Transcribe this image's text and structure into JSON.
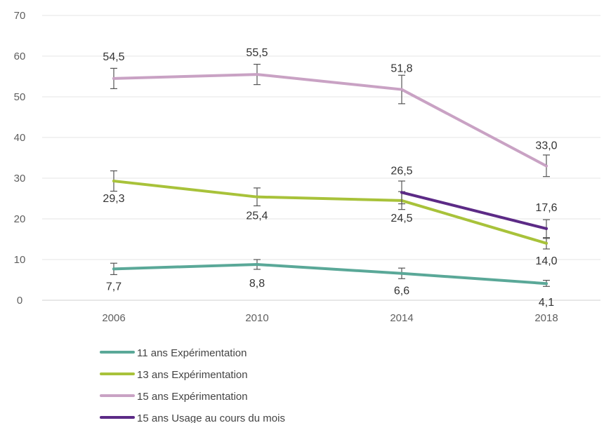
{
  "chart_data": {
    "type": "line",
    "title": "",
    "xlabel": "",
    "ylabel": "",
    "ylim": [
      0,
      70
    ],
    "yticks": [
      0,
      10,
      20,
      30,
      40,
      50,
      60,
      70
    ],
    "grid": true,
    "legend_position": "bottom-left",
    "categories": [
      "2006",
      "2010",
      "2014",
      "2018"
    ],
    "series": [
      {
        "name": "11 ans Expérimentation",
        "color": "#5aa898",
        "values": [
          7.7,
          8.8,
          6.6,
          4.1
        ],
        "labels": [
          "7,7",
          "8,8",
          "6,6",
          "4,1"
        ],
        "error": [
          [
            6.3,
            9.1
          ],
          [
            7.6,
            10.0
          ],
          [
            5.3,
            7.9
          ],
          [
            3.4,
            4.9
          ]
        ]
      },
      {
        "name": "13 ans Expérimentation",
        "color": "#a8c23a",
        "values": [
          29.3,
          25.4,
          24.5,
          14.0
        ],
        "labels": [
          "29,3",
          "25,4",
          "24,5",
          "14,0"
        ],
        "error": [
          [
            26.8,
            31.8
          ],
          [
            23.2,
            27.6
          ],
          [
            22.3,
            26.7
          ],
          [
            12.6,
            15.4
          ]
        ]
      },
      {
        "name": "15 ans Expérimentation",
        "color": "#c9a2c4",
        "values": [
          54.5,
          55.5,
          51.8,
          33.0
        ],
        "labels": [
          "54,5",
          "55,5",
          "51,8",
          "33,0"
        ],
        "error": [
          [
            52.0,
            57.0
          ],
          [
            53.0,
            58.0
          ],
          [
            48.3,
            55.3
          ],
          [
            30.4,
            35.7
          ]
        ]
      },
      {
        "name": "15 ans Usage au cours du mois",
        "color": "#5c2a86",
        "values": [
          null,
          null,
          26.5,
          17.6
        ],
        "labels": [
          null,
          null,
          "26,5",
          "17,6"
        ],
        "error": [
          null,
          null,
          [
            23.7,
            29.3
          ],
          [
            15.2,
            19.8
          ]
        ]
      }
    ]
  }
}
